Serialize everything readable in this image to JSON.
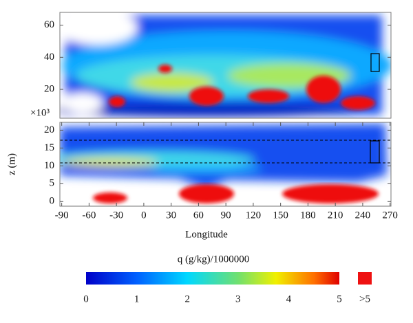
{
  "chart_data": [
    {
      "type": "heatmap",
      "xlim": [
        -92,
        271
      ],
      "ylim": [
        2,
        68
      ],
      "yticks": [
        20,
        40,
        60
      ]
    },
    {
      "type": "heatmap",
      "xlim": [
        -92,
        271
      ],
      "ylim": [
        -1.3,
        22.2
      ],
      "xticks": [
        -90,
        -60,
        -30,
        0,
        30,
        60,
        90,
        120,
        150,
        180,
        210,
        240,
        270
      ],
      "yticks": [
        0,
        5,
        10,
        15,
        20
      ],
      "xlabel": "Longitude",
      "ylabel": "z (m)",
      "y_multiplier": "×10³"
    },
    {
      "type": "colorbar",
      "title": "q (g/kg)/1000000",
      "lim": [
        0,
        5
      ],
      "ticks": [
        0,
        1,
        2,
        3,
        4,
        5
      ],
      "over_label": ">5",
      "over_color": "#ee1111"
    }
  ]
}
